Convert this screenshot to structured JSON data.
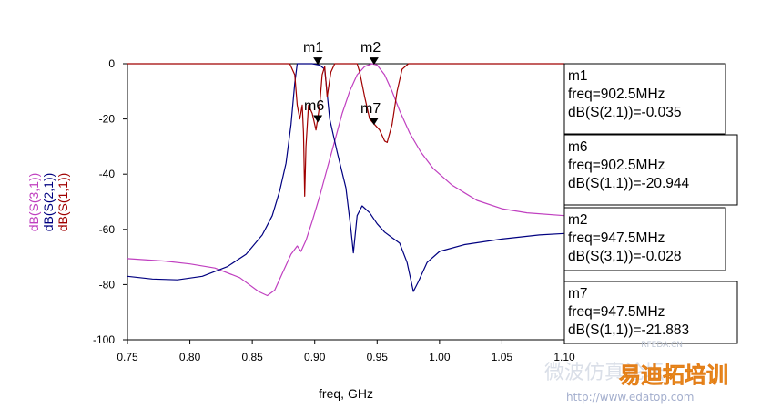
{
  "chart_data": {
    "type": "line",
    "xlabel": "freq, GHz",
    "ylim": [
      -100,
      0
    ],
    "xlim": [
      0.75,
      1.1
    ],
    "x_ticks": [
      "0.75",
      "0.80",
      "0.85",
      "0.90",
      "0.95",
      "1.00",
      "1.05",
      "1.10"
    ],
    "y_ticks": [
      "0",
      "-20",
      "-40",
      "-60",
      "-80",
      "-100"
    ],
    "grid": false,
    "series": [
      {
        "name": "dB(S(3,1))",
        "color": "#c040c0",
        "points": [
          [
            0.75,
            -70.6
          ],
          [
            0.78,
            -71.5
          ],
          [
            0.8,
            -72.5
          ],
          [
            0.82,
            -74.0
          ],
          [
            0.84,
            -77.5
          ],
          [
            0.855,
            -82.5
          ],
          [
            0.862,
            -84.0
          ],
          [
            0.868,
            -82.0
          ],
          [
            0.875,
            -75.0
          ],
          [
            0.881,
            -69.0
          ],
          [
            0.886,
            -66.0
          ],
          [
            0.889,
            -68.0
          ],
          [
            0.893,
            -64.0
          ],
          [
            0.898,
            -57.0
          ],
          [
            0.904,
            -48.0
          ],
          [
            0.91,
            -38.0
          ],
          [
            0.916,
            -28.0
          ],
          [
            0.922,
            -18.0
          ],
          [
            0.928,
            -10.0
          ],
          [
            0.934,
            -4.0
          ],
          [
            0.94,
            -1.0
          ],
          [
            0.946,
            0.0
          ],
          [
            0.95,
            -0.5
          ],
          [
            0.956,
            -4.0
          ],
          [
            0.962,
            -10.0
          ],
          [
            0.968,
            -17.0
          ],
          [
            0.976,
            -25.0
          ],
          [
            0.985,
            -32.0
          ],
          [
            0.995,
            -38.0
          ],
          [
            1.01,
            -44.0
          ],
          [
            1.03,
            -49.5
          ],
          [
            1.05,
            -52.5
          ],
          [
            1.07,
            -54.0
          ],
          [
            1.1,
            -55.0
          ]
        ]
      },
      {
        "name": "dB(S(2,1))",
        "color": "#000080",
        "points": [
          [
            0.75,
            -77.0
          ],
          [
            0.77,
            -78.0
          ],
          [
            0.79,
            -78.3
          ],
          [
            0.81,
            -77.0
          ],
          [
            0.83,
            -73.5
          ],
          [
            0.845,
            -69.0
          ],
          [
            0.858,
            -62.0
          ],
          [
            0.866,
            -55.0
          ],
          [
            0.872,
            -46.0
          ],
          [
            0.877,
            -36.0
          ],
          [
            0.881,
            -22.0
          ],
          [
            0.884,
            -7.0
          ],
          [
            0.886,
            0.0
          ],
          [
            0.892,
            0.0
          ],
          [
            0.898,
            0.0
          ],
          [
            0.904,
            -0.5
          ],
          [
            0.908,
            -2.0
          ],
          [
            0.912,
            -20.0
          ],
          [
            0.918,
            -32.0
          ],
          [
            0.925,
            -45.0
          ],
          [
            0.929,
            -60.0
          ],
          [
            0.931,
            -68.5
          ],
          [
            0.934,
            -55.0
          ],
          [
            0.938,
            -51.5
          ],
          [
            0.944,
            -54.0
          ],
          [
            0.95,
            -58.0
          ],
          [
            0.956,
            -61.0
          ],
          [
            0.962,
            -63.0
          ],
          [
            0.968,
            -65.0
          ],
          [
            0.974,
            -72.0
          ],
          [
            0.979,
            -82.5
          ],
          [
            0.983,
            -79.0
          ],
          [
            0.99,
            -72.0
          ],
          [
            1.0,
            -68.0
          ],
          [
            1.02,
            -65.5
          ],
          [
            1.05,
            -63.5
          ],
          [
            1.08,
            -62.0
          ],
          [
            1.1,
            -61.5
          ]
        ]
      },
      {
        "name": "dB(S(1,1))",
        "color": "#a00000",
        "points": [
          [
            0.75,
            0.0
          ],
          [
            0.88,
            0.0
          ],
          [
            0.884,
            -4.0
          ],
          [
            0.886,
            -15.0
          ],
          [
            0.888,
            -20.0
          ],
          [
            0.89,
            -15.0
          ],
          [
            0.891,
            -25.0
          ],
          [
            0.892,
            -48.0
          ],
          [
            0.893,
            -30.0
          ],
          [
            0.895,
            -15.0
          ],
          [
            0.898,
            -18.0
          ],
          [
            0.901,
            -24.0
          ],
          [
            0.902,
            -21.0
          ],
          [
            0.904,
            -15.0
          ],
          [
            0.906,
            -4.0
          ],
          [
            0.908,
            -1.0
          ],
          [
            0.91,
            -12.0
          ],
          [
            0.913,
            -3.0
          ],
          [
            0.916,
            0.0
          ],
          [
            0.934,
            0.0
          ],
          [
            0.936,
            -3.0
          ],
          [
            0.94,
            -12.0
          ],
          [
            0.944,
            -20.0
          ],
          [
            0.948,
            -22.0
          ],
          [
            0.952,
            -24.0
          ],
          [
            0.956,
            -28.0
          ],
          [
            0.958,
            -28.5
          ],
          [
            0.962,
            -22.0
          ],
          [
            0.966,
            -10.0
          ],
          [
            0.97,
            -2.0
          ],
          [
            0.975,
            0.0
          ],
          [
            1.1,
            0.0
          ]
        ]
      }
    ],
    "markers": [
      {
        "name": "m1",
        "freq": 0.9025,
        "value": -0.035
      },
      {
        "name": "m2",
        "freq": 0.9475,
        "value": -0.028
      },
      {
        "name": "m6",
        "freq": 0.9025,
        "value": -20.944
      },
      {
        "name": "m7",
        "freq": 0.9475,
        "value": -21.883
      }
    ]
  },
  "markers": {
    "m1": "m1",
    "m2": "m2",
    "m6": "m6",
    "m7": "m7"
  },
  "axis": {
    "xlabel": "freq, GHz",
    "ylabel_s31": "dB(S(3,1))",
    "ylabel_s21": "dB(S(2,1))",
    "ylabel_s11": "dB(S(1,1))"
  },
  "readouts": [
    {
      "name": "m1",
      "freq": "freq=902.5MHz",
      "value": "dB(S(2,1))=-0.035"
    },
    {
      "name": "m6",
      "freq": "freq=902.5MHz",
      "value": "dB(S(1,1))=-20.944"
    },
    {
      "name": "m2",
      "freq": "freq=947.5MHz",
      "value": "dB(S(3,1))=-0.028"
    },
    {
      "name": "m7",
      "freq": "freq=947.5MHz",
      "value": "dB(S(1,1))=-21.883"
    }
  ],
  "watermark": {
    "brand_cn": "易迪拓培训",
    "url": "http://www.edatop.com",
    "site_small": "RFEDA.CN",
    "faint_cn": "微波仿真论坛"
  }
}
